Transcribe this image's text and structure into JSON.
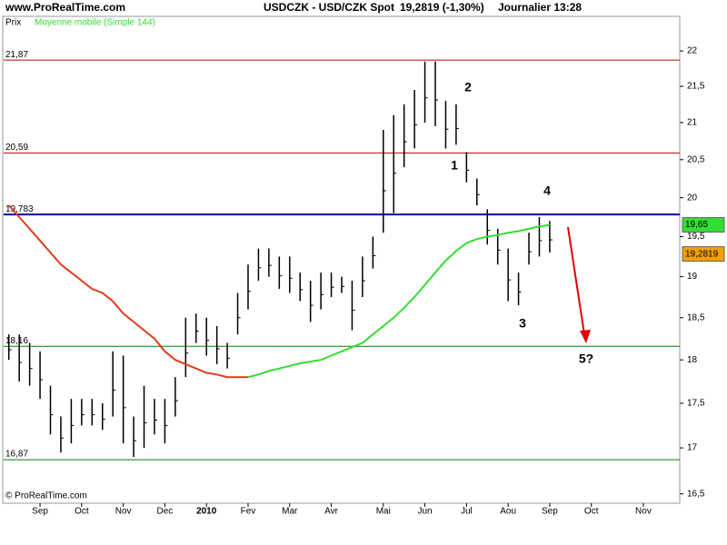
{
  "header": {
    "site": "www.ProRealTime.com",
    "instrument": "USDCZK - USD/CZK Spot",
    "quote": "19,2819 (-1,30%)",
    "period": "Journalier  13:28"
  },
  "footer": "© ProRealTime.com",
  "chart_data": {
    "type": "hilo",
    "y_label": "Prix",
    "log_scale": true,
    "color": "#000000",
    "categories": [
      null,
      null,
      null,
      "Sep",
      null,
      null,
      null,
      "Oct",
      null,
      null,
      null,
      "Nov",
      null,
      null,
      null,
      "Dec",
      null,
      null,
      null,
      "2010",
      null,
      null,
      null,
      "Fev",
      null,
      null,
      null,
      "Mar",
      null,
      null,
      null,
      "Avr",
      null,
      null,
      null,
      null,
      "Mai",
      null,
      null,
      null,
      "Jun",
      null,
      null,
      null,
      "Jul",
      null,
      null,
      null,
      "Aou",
      null,
      null,
      null,
      "Sep",
      null,
      null,
      null,
      "Oct",
      null,
      null,
      null,
      null,
      "Nov",
      null,
      null,
      null
    ],
    "highs": [
      18.3,
      18.3,
      18.2,
      18.1,
      17.7,
      17.35,
      17.55,
      17.55,
      17.55,
      17.5,
      18.1,
      18.05,
      17.35,
      17.7,
      17.55,
      17.55,
      17.8,
      18.5,
      18.55,
      18.5,
      18.4,
      18.2,
      18.8,
      19.15,
      19.35,
      19.35,
      19.25,
      19.25,
      19.05,
      18.95,
      19.05,
      19.05,
      19.0,
      18.95,
      19.25,
      19.5,
      20.9,
      21.1,
      21.25,
      21.45,
      21.85,
      21.85,
      21.3,
      21.25,
      20.6,
      20.25,
      19.85,
      19.6,
      19.35,
      19.05,
      19.55,
      19.75,
      19.7,
      null,
      null,
      null,
      null,
      null,
      null,
      null,
      null,
      null,
      null,
      null
    ],
    "lows": [
      18.0,
      17.75,
      17.7,
      17.55,
      17.15,
      16.95,
      17.05,
      17.25,
      17.25,
      17.2,
      17.35,
      17.05,
      16.9,
      17.0,
      17.15,
      17.05,
      17.35,
      17.8,
      18.2,
      18.05,
      17.95,
      17.9,
      18.3,
      18.6,
      18.95,
      19.0,
      18.85,
      18.8,
      18.7,
      18.45,
      18.6,
      18.75,
      18.8,
      18.35,
      18.75,
      19.1,
      19.55,
      19.8,
      20.4,
      20.65,
      21.0,
      20.95,
      20.65,
      20.7,
      20.2,
      19.9,
      19.4,
      19.15,
      18.7,
      18.65,
      19.15,
      19.25,
      19.3,
      null,
      null,
      null,
      null,
      null,
      null,
      null,
      null,
      null,
      null,
      null
    ],
    "moving_average": {
      "name": "Moyenne mobile (Simple 144)",
      "color": "#33dd33",
      "segments": [
        {
          "color": "#e03c1c",
          "values": [
            19.9,
            19.75,
            19.6,
            19.45,
            19.3,
            19.15,
            19.05,
            18.95,
            18.85,
            18.8,
            18.7,
            18.55,
            18.45,
            18.35,
            18.25,
            18.1,
            18.0,
            17.95,
            17.9,
            17.85,
            17.83,
            17.8,
            17.8,
            17.8,
            null,
            null,
            null,
            null,
            null,
            null,
            null,
            null,
            null,
            null,
            null,
            null,
            null,
            null,
            null,
            null,
            null,
            null,
            null,
            null,
            null,
            null,
            null,
            null,
            null,
            null,
            null,
            null,
            null,
            null,
            null,
            null,
            null,
            null,
            null,
            null,
            null,
            null,
            null,
            null
          ]
        },
        {
          "color": "#33dd33",
          "values": [
            null,
            null,
            null,
            null,
            null,
            null,
            null,
            null,
            null,
            null,
            null,
            null,
            null,
            null,
            null,
            null,
            null,
            null,
            null,
            null,
            null,
            null,
            null,
            17.8,
            17.83,
            17.87,
            17.9,
            17.93,
            17.96,
            17.98,
            18.0,
            18.05,
            18.1,
            18.15,
            18.2,
            18.3,
            18.4,
            18.5,
            18.62,
            18.75,
            18.9,
            19.05,
            19.2,
            19.32,
            19.42,
            19.47,
            19.5,
            19.52,
            19.55,
            19.57,
            19.6,
            19.63,
            19.65,
            null,
            null,
            null,
            null,
            null,
            null,
            null,
            null,
            null,
            null,
            null
          ]
        }
      ]
    },
    "levels": [
      {
        "value": 21.87,
        "label": "21,87",
        "color": "#c00000"
      },
      {
        "value": 20.59,
        "label": "20,59",
        "color": "#c00000"
      },
      {
        "value": 19.783,
        "label": "19,783",
        "color": "#0000a0"
      },
      {
        "value": 18.16,
        "label": "18,16",
        "color": "#008000"
      },
      {
        "value": 16.87,
        "label": "16,87",
        "color": "#008000"
      }
    ],
    "ma_last": {
      "value": 19.65,
      "label": "19,65",
      "color": "#33dd33"
    },
    "last": {
      "value": 19.2819,
      "label": "19,2819",
      "color": "#f0a000"
    },
    "annotations": [
      "1",
      "2",
      "3",
      "4",
      "5?"
    ],
    "ylim": [
      16.4,
      22.5
    ],
    "yticks": [
      {
        "value": 16.5,
        "label": "16,5"
      },
      17,
      {
        "value": 17.5,
        "label": "17,5"
      },
      18,
      {
        "value": 18.5,
        "label": "18,5"
      },
      19,
      {
        "value": 19.5,
        "label": "19,5"
      },
      20,
      {
        "value": 20.5,
        "label": "20,5"
      },
      21,
      {
        "value": 21.5,
        "label": "21,5"
      },
      22
    ]
  }
}
